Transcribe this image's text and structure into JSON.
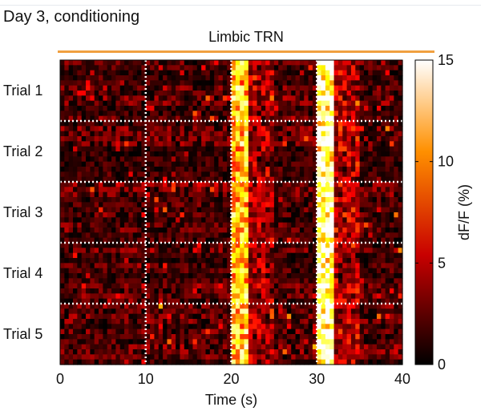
{
  "header": {
    "title": "Day 3, conditioning",
    "subtitle": "Limbic TRN"
  },
  "colors": {
    "stimulus_bar": "#f0a040",
    "trial_divider": "#ffffff",
    "axis": "#000000"
  },
  "chart_data": {
    "type": "heatmap",
    "title": "Limbic TRN",
    "xlabel": "Time (s)",
    "ylabel": "",
    "xlim": [
      0,
      40
    ],
    "x_ticks": [
      0,
      10,
      20,
      30,
      40
    ],
    "x_tick_labels": [
      "0",
      "10",
      "20",
      "30",
      "40"
    ],
    "event_times_s": [
      10,
      20,
      30
    ],
    "rows": [
      "Trial 1",
      "Trial 2",
      "Trial 3",
      "Trial 4",
      "Trial 5"
    ],
    "colorbar": {
      "label": "dF/F (%)",
      "range": [
        0,
        15
      ],
      "ticks": [
        0,
        5,
        10,
        15
      ],
      "tick_labels": [
        "0",
        "5",
        "10",
        "15"
      ],
      "colormap": "hot"
    },
    "response_profile": [
      {
        "window_s": [
          0,
          20
        ],
        "mean_dff": 2
      },
      {
        "window_s": [
          20,
          22
        ],
        "mean_dff": 10
      },
      {
        "window_s": [
          22,
          30
        ],
        "mean_dff": 2
      },
      {
        "window_s": [
          30,
          32
        ],
        "mean_dff": 14
      },
      {
        "window_s": [
          32,
          40
        ],
        "mean_dff": 2
      }
    ]
  }
}
